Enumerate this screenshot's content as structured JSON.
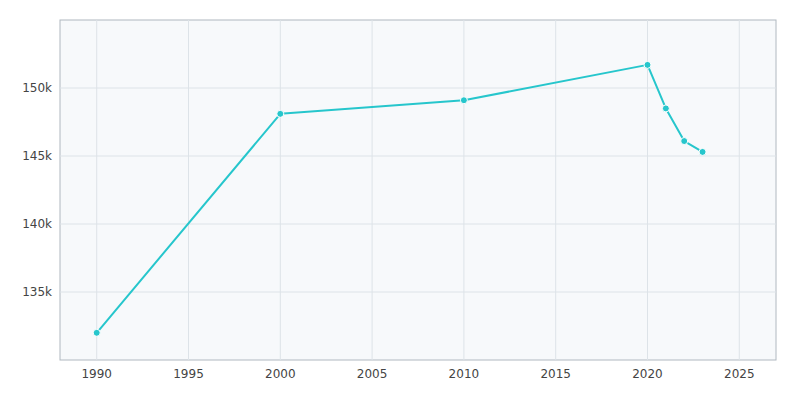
{
  "chart_data": {
    "type": "line",
    "x": [
      1990,
      2000,
      2010,
      2020,
      2021,
      2022,
      2023
    ],
    "values": [
      132000,
      148100,
      149100,
      151700,
      148500,
      146100,
      145300
    ],
    "color": "#26c6cc",
    "marker": "circle",
    "xlim": [
      1988,
      2027
    ],
    "ylim": [
      130000,
      155000
    ],
    "xticks": [
      1990,
      1995,
      2000,
      2005,
      2010,
      2015,
      2020,
      2025
    ],
    "yticks": [
      {
        "value": 135000,
        "label": "135k"
      },
      {
        "value": 140000,
        "label": "140k"
      },
      {
        "value": 145000,
        "label": "145k"
      },
      {
        "value": 150000,
        "label": "150k"
      }
    ],
    "grid": true
  }
}
